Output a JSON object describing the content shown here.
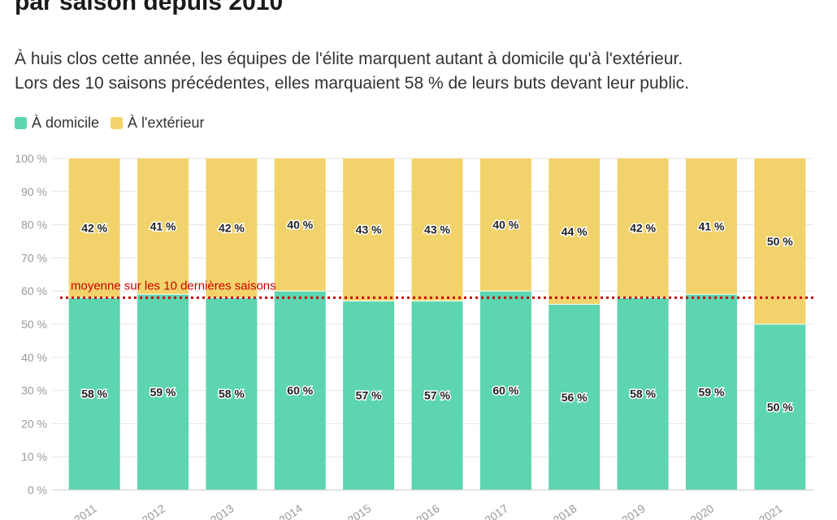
{
  "title": "par saison depuis 2010",
  "subtitle_line1": "À huis clos cette année, les équipes de l'élite marquent autant à domicile qu'à l'extérieur.",
  "subtitle_line2": "Lors des 10 saisons précédentes, elles marquaient 58 % de leurs buts devant leur public.",
  "colors": {
    "home": "#5cd5b0",
    "away": "#f2d36b",
    "average_line": "#cc0000"
  },
  "chart_data": {
    "type": "bar",
    "stacked": true,
    "categories": [
      "2011",
      "2012",
      "2013",
      "2014",
      "2015",
      "2016",
      "2017",
      "2018",
      "2019",
      "2020",
      "2021"
    ],
    "series": [
      {
        "name": "À domicile",
        "values": [
          58,
          59,
          58,
          60,
          57,
          57,
          60,
          56,
          58,
          59,
          50
        ]
      },
      {
        "name": "À l'extérieur",
        "values": [
          42,
          41,
          42,
          40,
          43,
          43,
          40,
          44,
          42,
          41,
          50
        ]
      }
    ],
    "ylim": [
      0,
      100
    ],
    "yticks": [
      0,
      10,
      20,
      30,
      40,
      50,
      60,
      70,
      80,
      90,
      100
    ],
    "ytick_suffix": " %",
    "value_suffix": " %",
    "grid": true,
    "legend_position": "top-left",
    "reference_line": {
      "value": 58,
      "label": "moyenne sur les 10 dernières saisons"
    }
  }
}
